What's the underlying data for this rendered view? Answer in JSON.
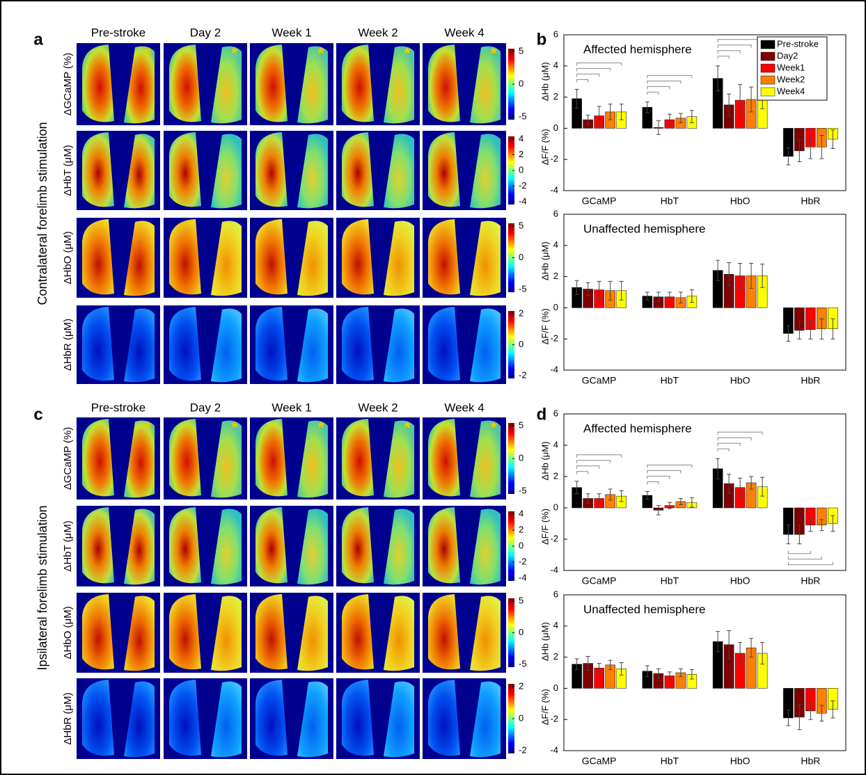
{
  "panel_labels": [
    "a",
    "b",
    "c",
    "d"
  ],
  "image_panels": [
    {
      "side_title": "Contralateral forelimb stimulation",
      "columns": [
        "Pre-stroke",
        "Day 2",
        "Week 1",
        "Week 2",
        "Week 4"
      ],
      "marker": "*",
      "rows": [
        {
          "label": "ΔGCaMP (%)",
          "colorbar_ticks": [
            5,
            0,
            -5
          ]
        },
        {
          "label": "ΔHbT (μM)",
          "colorbar_ticks": [
            4,
            2,
            0,
            -2,
            -4
          ]
        },
        {
          "label": "ΔHbO (μM)",
          "colorbar_ticks": [
            5,
            0,
            -5
          ]
        },
        {
          "label": "ΔHbR (μM)",
          "colorbar_ticks": [
            2,
            0,
            -2
          ]
        }
      ]
    },
    {
      "side_title": "Ipsilateral forelimb stimulation",
      "columns": [
        "Pre-stroke",
        "Day 2",
        "Week 1",
        "Week 2",
        "Week 4"
      ],
      "marker": "*",
      "rows": [
        {
          "label": "ΔGCaMP (%)",
          "colorbar_ticks": [
            5,
            0,
            -5
          ]
        },
        {
          "label": "ΔHbT (μM)",
          "colorbar_ticks": [
            4,
            2,
            0,
            -2,
            -4
          ]
        },
        {
          "label": "ΔHbO (μM)",
          "colorbar_ticks": [
            5,
            0,
            -5
          ]
        },
        {
          "label": "ΔHbR (μM)",
          "colorbar_ticks": [
            2,
            0,
            -2
          ]
        }
      ]
    }
  ],
  "chart_data": [
    {
      "type": "bar",
      "annotation": "Affected hemisphere",
      "ylabel_top": "ΔHb (μM)",
      "ylabel_bottom": "ΔF/F (%)",
      "categories": [
        "GCaMP",
        "HbT",
        "HbO",
        "HbR"
      ],
      "ylim": [
        -4,
        6
      ],
      "yticks": [
        -4,
        -2,
        0,
        2,
        4,
        6
      ],
      "legend": "upper right",
      "series": [
        {
          "name": "Pre-stroke",
          "color": "#000000",
          "values": [
            1.9,
            1.35,
            3.2,
            -1.8
          ],
          "errors": [
            0.6,
            0.35,
            0.8,
            0.55
          ]
        },
        {
          "name": "Day2",
          "color": "#800000",
          "values": [
            0.55,
            0.05,
            1.5,
            -1.45
          ],
          "errors": [
            0.3,
            0.45,
            0.7,
            0.7
          ]
        },
        {
          "name": "Week1",
          "color": "#ff0000",
          "values": [
            0.8,
            0.55,
            1.8,
            -1.2
          ],
          "errors": [
            0.6,
            0.35,
            1.0,
            0.75
          ]
        },
        {
          "name": "Week2",
          "color": "#ff8000",
          "values": [
            1.05,
            0.65,
            1.85,
            -1.2
          ],
          "errors": [
            0.5,
            0.3,
            0.8,
            0.75
          ]
        },
        {
          "name": "Week4",
          "color": "#ffff00",
          "values": [
            1.05,
            0.75,
            1.95,
            -0.7
          ],
          "errors": [
            0.5,
            0.4,
            0.7,
            0.6
          ]
        }
      ]
    },
    {
      "type": "bar",
      "annotation": "Unaffected hemisphere",
      "ylabel_top": "ΔHb (μM)",
      "ylabel_bottom": "ΔF/F (%)",
      "categories": [
        "GCaMP",
        "HbT",
        "HbO",
        "HbR"
      ],
      "ylim": [
        -4,
        6
      ],
      "yticks": [
        -4,
        -2,
        0,
        2,
        4,
        6
      ],
      "series": [
        {
          "color": "#000000",
          "values": [
            1.3,
            0.75,
            2.4,
            -1.65
          ],
          "errors": [
            0.45,
            0.25,
            0.65,
            0.5
          ]
        },
        {
          "color": "#800000",
          "values": [
            1.2,
            0.7,
            2.15,
            -1.45
          ],
          "errors": [
            0.4,
            0.3,
            0.75,
            0.55
          ]
        },
        {
          "color": "#ff0000",
          "values": [
            1.15,
            0.7,
            2.05,
            -1.4
          ],
          "errors": [
            0.55,
            0.3,
            0.8,
            0.6
          ]
        },
        {
          "color": "#ff8000",
          "values": [
            1.1,
            0.65,
            2.05,
            -1.35
          ],
          "errors": [
            0.6,
            0.35,
            0.8,
            0.65
          ]
        },
        {
          "color": "#ffff00",
          "values": [
            1.1,
            0.75,
            2.05,
            -1.35
          ],
          "errors": [
            0.6,
            0.4,
            0.75,
            0.65
          ]
        }
      ]
    },
    {
      "type": "bar",
      "annotation": "Affected hemisphere",
      "ylabel_top": "ΔHb (μM)",
      "ylabel_bottom": "ΔF/F (%)",
      "categories": [
        "GCaMP",
        "HbT",
        "HbO",
        "HbR"
      ],
      "ylim": [
        -4,
        6
      ],
      "yticks": [
        -4,
        -2,
        0,
        2,
        4,
        6
      ],
      "series": [
        {
          "color": "#000000",
          "values": [
            1.3,
            0.8,
            2.5,
            -1.7
          ],
          "errors": [
            0.4,
            0.25,
            0.65,
            0.6
          ]
        },
        {
          "color": "#800000",
          "values": [
            0.6,
            -0.15,
            1.55,
            -1.7
          ],
          "errors": [
            0.3,
            0.3,
            0.6,
            0.6
          ]
        },
        {
          "color": "#ff0000",
          "values": [
            0.6,
            0.15,
            1.3,
            -1.1
          ],
          "errors": [
            0.3,
            0.2,
            0.6,
            0.4
          ]
        },
        {
          "color": "#ff8000",
          "values": [
            0.85,
            0.4,
            1.6,
            -1.1
          ],
          "errors": [
            0.35,
            0.2,
            0.4,
            0.35
          ]
        },
        {
          "color": "#ffff00",
          "values": [
            0.75,
            0.35,
            1.35,
            -1.0
          ],
          "errors": [
            0.35,
            0.3,
            0.6,
            0.5
          ]
        }
      ]
    },
    {
      "type": "bar",
      "annotation": "Unaffected hemisphere",
      "ylabel_top": "ΔHb (μM)",
      "ylabel_bottom": "ΔF/F (%)",
      "categories": [
        "GCaMP",
        "HbT",
        "HbO",
        "HbR"
      ],
      "ylim": [
        -4,
        6
      ],
      "yticks": [
        -4,
        -2,
        0,
        2,
        4,
        6
      ],
      "series": [
        {
          "color": "#000000",
          "values": [
            1.55,
            1.1,
            3.0,
            -1.9
          ],
          "errors": [
            0.35,
            0.35,
            0.65,
            0.5
          ]
        },
        {
          "color": "#800000",
          "values": [
            1.6,
            0.95,
            2.8,
            -1.85
          ],
          "errors": [
            0.45,
            0.3,
            0.9,
            0.8
          ]
        },
        {
          "color": "#ff0000",
          "values": [
            1.3,
            0.8,
            2.25,
            -1.45
          ],
          "errors": [
            0.3,
            0.25,
            0.7,
            0.55
          ]
        },
        {
          "color": "#ff8000",
          "values": [
            1.5,
            1.0,
            2.6,
            -1.6
          ],
          "errors": [
            0.3,
            0.25,
            0.6,
            0.5
          ]
        },
        {
          "color": "#ffff00",
          "values": [
            1.25,
            0.9,
            2.25,
            -1.35
          ],
          "errors": [
            0.4,
            0.3,
            0.7,
            0.55
          ]
        }
      ]
    }
  ]
}
